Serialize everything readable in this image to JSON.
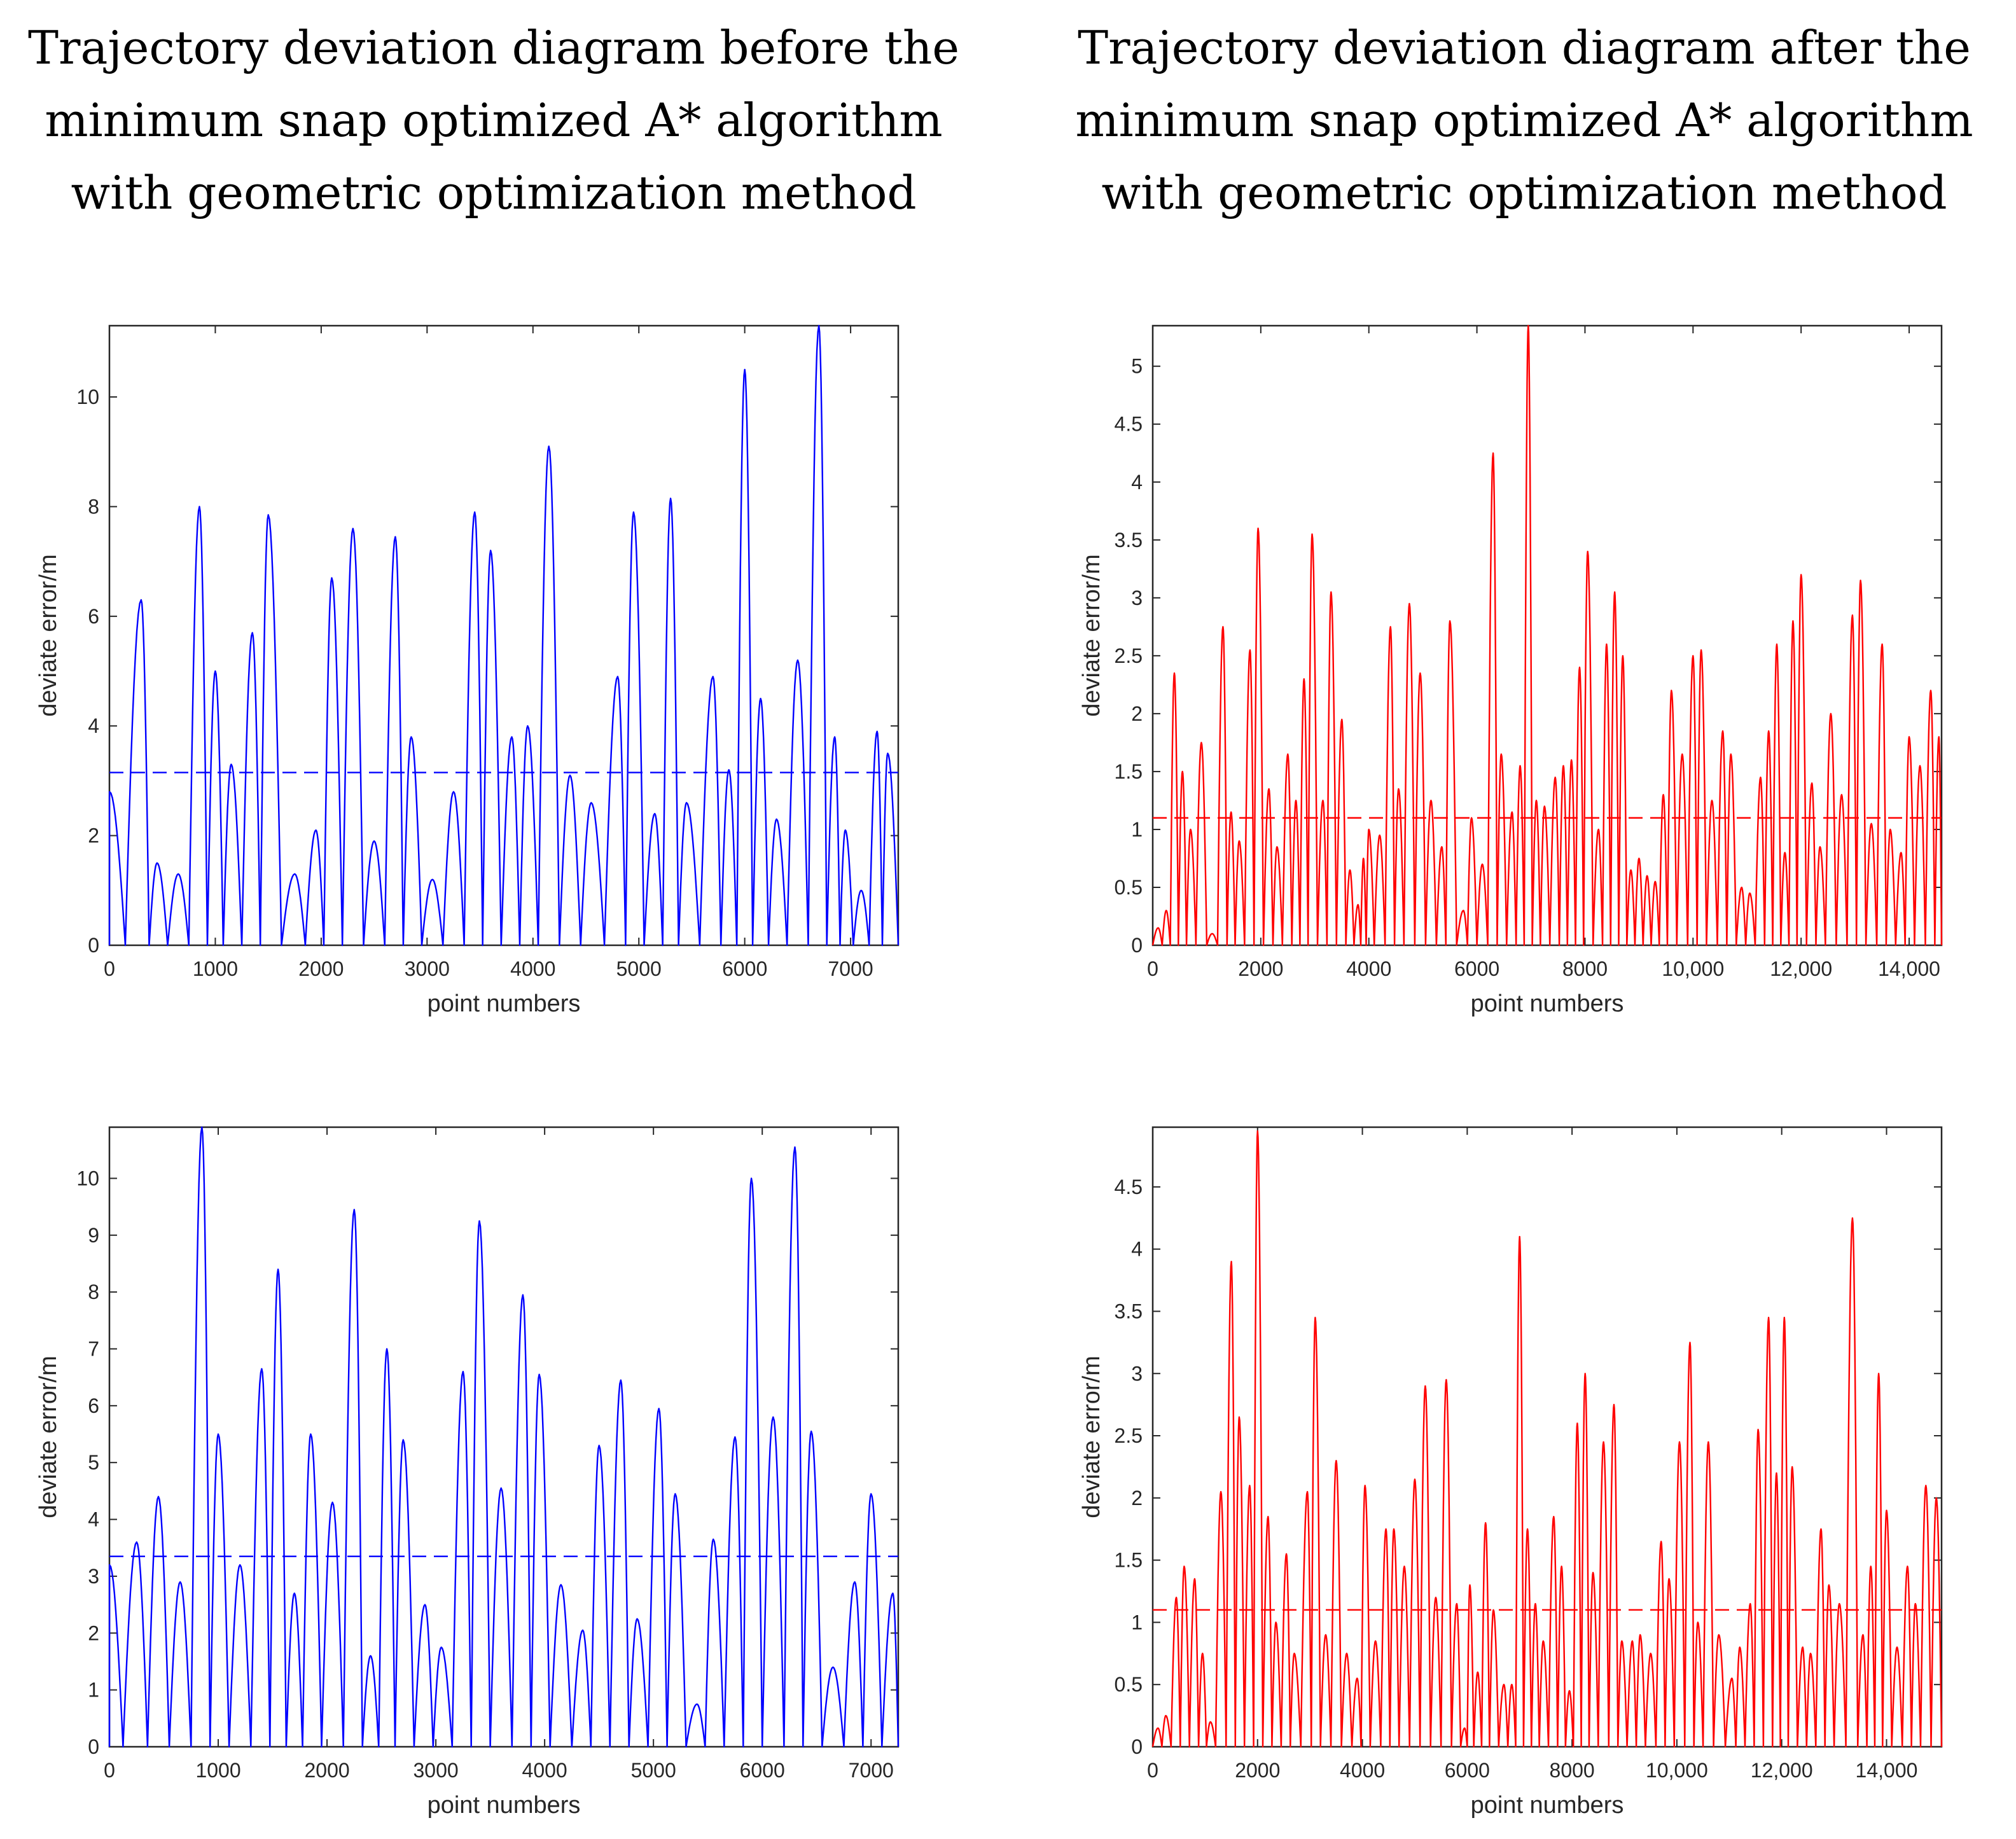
{
  "titles": {
    "left": "Trajectory deviation diagram before the\nminimum snap optimized A* algorithm\nwith geometric optimization method",
    "right": "Trajectory deviation diagram after the\nminimum snap optimized A* algorithm\nwith geometric optimization method"
  },
  "colors": {
    "before": "#0000ff",
    "after": "#ff0000",
    "axis": "#262626"
  },
  "chart_data": [
    {
      "id": "top-left",
      "type": "line",
      "color_key": "before",
      "xlabel": "point numbers",
      "ylabel": "deviate error/m",
      "xlim": [
        0,
        7450
      ],
      "ylim": [
        0,
        11.3
      ],
      "xticks": [
        0,
        1000,
        2000,
        3000,
        4000,
        5000,
        6000,
        7000
      ],
      "xtick_labels": [
        "0",
        "1000",
        "2000",
        "3000",
        "4000",
        "5000",
        "6000",
        "7000"
      ],
      "yticks": [
        0,
        2,
        4,
        6,
        8,
        10
      ],
      "ytick_labels": [
        "0",
        "2",
        "4",
        "6",
        "8",
        "10"
      ],
      "mean": 3.15,
      "peak_halfwidth": 50,
      "peaks": [
        [
          0,
          2.8
        ],
        [
          300,
          6.3
        ],
        [
          450,
          1.5
        ],
        [
          650,
          1.3
        ],
        [
          850,
          8.0
        ],
        [
          1000,
          5.0
        ],
        [
          1150,
          3.3
        ],
        [
          1350,
          5.7
        ],
        [
          1500,
          7.85
        ],
        [
          1750,
          1.3
        ],
        [
          1950,
          2.1
        ],
        [
          2100,
          6.7
        ],
        [
          2300,
          7.6
        ],
        [
          2500,
          1.9
        ],
        [
          2700,
          7.45
        ],
        [
          2850,
          3.8
        ],
        [
          3050,
          1.2
        ],
        [
          3250,
          2.8
        ],
        [
          3450,
          7.9
        ],
        [
          3600,
          7.2
        ],
        [
          3800,
          3.8
        ],
        [
          3950,
          4.0
        ],
        [
          4150,
          9.1
        ],
        [
          4350,
          3.1
        ],
        [
          4550,
          2.6
        ],
        [
          4800,
          4.9
        ],
        [
          4950,
          7.9
        ],
        [
          5150,
          2.4
        ],
        [
          5300,
          8.15
        ],
        [
          5450,
          2.6
        ],
        [
          5700,
          4.9
        ],
        [
          5850,
          3.2
        ],
        [
          6000,
          10.5
        ],
        [
          6150,
          4.5
        ],
        [
          6300,
          2.3
        ],
        [
          6500,
          5.2
        ],
        [
          6700,
          11.3
        ],
        [
          6850,
          3.8
        ],
        [
          6950,
          2.1
        ],
        [
          7100,
          1.0
        ],
        [
          7250,
          3.9
        ],
        [
          7350,
          3.5
        ]
      ]
    },
    {
      "id": "top-right",
      "type": "line",
      "color_key": "after",
      "xlabel": "point numbers",
      "ylabel": "deviate error/m",
      "xlim": [
        0,
        14600
      ],
      "ylim": [
        0,
        5.35
      ],
      "xticks": [
        0,
        2000,
        4000,
        6000,
        8000,
        10000,
        12000,
        14000
      ],
      "xtick_labels": [
        "0",
        "2000",
        "4000",
        "6000",
        "8000",
        "10,000",
        "12,000",
        "14,000"
      ],
      "yticks": [
        0,
        0.5,
        1,
        1.5,
        2,
        2.5,
        3,
        3.5,
        4,
        4.5,
        5
      ],
      "ytick_labels": [
        "0",
        "0.5",
        "1",
        "1.5",
        "2",
        "2.5",
        "3",
        "3.5",
        "4",
        "4.5",
        "5"
      ],
      "mean": 1.1,
      "peak_halfwidth": 45,
      "peaks": [
        [
          100,
          0.15
        ],
        [
          250,
          0.3
        ],
        [
          400,
          2.35
        ],
        [
          550,
          1.5
        ],
        [
          700,
          1.0
        ],
        [
          900,
          1.75
        ],
        [
          1100,
          0.1
        ],
        [
          1300,
          2.75
        ],
        [
          1450,
          1.15
        ],
        [
          1600,
          0.9
        ],
        [
          1800,
          2.55
        ],
        [
          1950,
          3.6
        ],
        [
          2150,
          1.35
        ],
        [
          2300,
          0.85
        ],
        [
          2500,
          1.65
        ],
        [
          2650,
          1.25
        ],
        [
          2800,
          2.3
        ],
        [
          2950,
          3.55
        ],
        [
          3150,
          1.25
        ],
        [
          3300,
          3.05
        ],
        [
          3500,
          1.95
        ],
        [
          3650,
          0.65
        ],
        [
          3800,
          0.35
        ],
        [
          3900,
          0.75
        ],
        [
          4000,
          1.0
        ],
        [
          4200,
          0.95
        ],
        [
          4400,
          2.75
        ],
        [
          4550,
          1.35
        ],
        [
          4750,
          2.95
        ],
        [
          4950,
          2.35
        ],
        [
          5150,
          1.25
        ],
        [
          5350,
          0.85
        ],
        [
          5500,
          2.8
        ],
        [
          5750,
          0.3
        ],
        [
          5900,
          1.1
        ],
        [
          6100,
          0.7
        ],
        [
          6300,
          4.25
        ],
        [
          6450,
          1.65
        ],
        [
          6650,
          1.15
        ],
        [
          6800,
          1.55
        ],
        [
          6950,
          5.35
        ],
        [
          7100,
          1.25
        ],
        [
          7250,
          1.2
        ],
        [
          7450,
          1.45
        ],
        [
          7600,
          1.55
        ],
        [
          7750,
          1.6
        ],
        [
          7900,
          2.4
        ],
        [
          8050,
          3.4
        ],
        [
          8250,
          1.0
        ],
        [
          8400,
          2.6
        ],
        [
          8550,
          3.05
        ],
        [
          8700,
          2.5
        ],
        [
          8850,
          0.65
        ],
        [
          9000,
          0.75
        ],
        [
          9150,
          0.6
        ],
        [
          9300,
          0.55
        ],
        [
          9450,
          1.3
        ],
        [
          9600,
          2.2
        ],
        [
          9800,
          1.65
        ],
        [
          10000,
          2.5
        ],
        [
          10150,
          2.55
        ],
        [
          10350,
          1.25
        ],
        [
          10550,
          1.85
        ],
        [
          10700,
          1.65
        ],
        [
          10900,
          0.5
        ],
        [
          11050,
          0.45
        ],
        [
          11250,
          1.45
        ],
        [
          11400,
          1.85
        ],
        [
          11550,
          2.6
        ],
        [
          11700,
          0.8
        ],
        [
          11850,
          2.8
        ],
        [
          12000,
          3.2
        ],
        [
          12200,
          1.4
        ],
        [
          12350,
          0.85
        ],
        [
          12550,
          2.0
        ],
        [
          12750,
          1.3
        ],
        [
          12950,
          2.85
        ],
        [
          13100,
          3.15
        ],
        [
          13300,
          1.05
        ],
        [
          13500,
          2.6
        ],
        [
          13650,
          1.0
        ],
        [
          13850,
          0.8
        ],
        [
          14000,
          1.8
        ],
        [
          14200,
          1.55
        ],
        [
          14400,
          2.2
        ],
        [
          14550,
          1.8
        ]
      ]
    },
    {
      "id": "bottom-left",
      "type": "line",
      "color_key": "before",
      "xlabel": "point numbers",
      "ylabel": "deviate error/m",
      "xlim": [
        0,
        7250
      ],
      "ylim": [
        0,
        10.9
      ],
      "xticks": [
        0,
        1000,
        2000,
        3000,
        4000,
        5000,
        6000,
        7000
      ],
      "xtick_labels": [
        "0",
        "1000",
        "2000",
        "3000",
        "4000",
        "5000",
        "6000",
        "7000"
      ],
      "yticks": [
        0,
        1,
        2,
        3,
        4,
        5,
        6,
        7,
        8,
        9,
        10
      ],
      "ytick_labels": [
        "0",
        "1",
        "2",
        "3",
        "4",
        "5",
        "6",
        "7",
        "8",
        "9",
        "10"
      ],
      "mean": 3.35,
      "peak_halfwidth": 50,
      "peaks": [
        [
          0,
          3.2
        ],
        [
          250,
          3.6
        ],
        [
          450,
          4.4
        ],
        [
          650,
          2.9
        ],
        [
          850,
          10.9
        ],
        [
          1000,
          5.5
        ],
        [
          1200,
          3.2
        ],
        [
          1400,
          6.65
        ],
        [
          1550,
          8.4
        ],
        [
          1700,
          2.7
        ],
        [
          1850,
          5.5
        ],
        [
          2050,
          4.3
        ],
        [
          2250,
          9.45
        ],
        [
          2400,
          1.6
        ],
        [
          2550,
          7.0
        ],
        [
          2700,
          5.4
        ],
        [
          2900,
          2.5
        ],
        [
          3050,
          1.75
        ],
        [
          3250,
          6.6
        ],
        [
          3400,
          9.25
        ],
        [
          3600,
          4.55
        ],
        [
          3800,
          7.95
        ],
        [
          3950,
          6.55
        ],
        [
          4150,
          2.85
        ],
        [
          4350,
          2.05
        ],
        [
          4500,
          5.3
        ],
        [
          4700,
          6.45
        ],
        [
          4850,
          2.25
        ],
        [
          5050,
          5.95
        ],
        [
          5200,
          4.45
        ],
        [
          5400,
          0.75
        ],
        [
          5550,
          3.65
        ],
        [
          5750,
          5.45
        ],
        [
          5900,
          10.0
        ],
        [
          6100,
          5.8
        ],
        [
          6300,
          10.55
        ],
        [
          6450,
          5.55
        ],
        [
          6650,
          1.4
        ],
        [
          6850,
          2.9
        ],
        [
          7000,
          4.45
        ],
        [
          7200,
          2.7
        ]
      ]
    },
    {
      "id": "bottom-right",
      "type": "line",
      "color_key": "after",
      "xlabel": "point numbers",
      "ylabel": "deviate error/m",
      "xlim": [
        0,
        15050
      ],
      "ylim": [
        0,
        4.98
      ],
      "xticks": [
        0,
        2000,
        4000,
        6000,
        8000,
        10000,
        12000,
        14000
      ],
      "xtick_labels": [
        "0",
        "2000",
        "4000",
        "6000",
        "8000",
        "10,000",
        "12,000",
        "14,000"
      ],
      "yticks": [
        0,
        0.5,
        1,
        1.5,
        2,
        2.5,
        3,
        3.5,
        4,
        4.5
      ],
      "ytick_labels": [
        "0",
        "0.5",
        "1",
        "1.5",
        "2",
        "2.5",
        "3",
        "3.5",
        "4",
        "4.5"
      ],
      "mean": 1.1,
      "peak_halfwidth": 45,
      "peaks": [
        [
          100,
          0.15
        ],
        [
          250,
          0.25
        ],
        [
          450,
          1.2
        ],
        [
          600,
          1.45
        ],
        [
          800,
          1.35
        ],
        [
          950,
          0.75
        ],
        [
          1100,
          0.2
        ],
        [
          1300,
          2.05
        ],
        [
          1500,
          3.9
        ],
        [
          1650,
          2.65
        ],
        [
          1850,
          2.1
        ],
        [
          2000,
          4.95
        ],
        [
          2200,
          1.85
        ],
        [
          2350,
          1.0
        ],
        [
          2550,
          1.55
        ],
        [
          2700,
          0.75
        ],
        [
          2950,
          2.05
        ],
        [
          3100,
          3.45
        ],
        [
          3300,
          0.9
        ],
        [
          3500,
          2.3
        ],
        [
          3700,
          0.75
        ],
        [
          3900,
          0.55
        ],
        [
          4050,
          2.1
        ],
        [
          4250,
          0.85
        ],
        [
          4450,
          1.75
        ],
        [
          4600,
          1.75
        ],
        [
          4800,
          1.45
        ],
        [
          5000,
          2.15
        ],
        [
          5200,
          2.9
        ],
        [
          5400,
          1.2
        ],
        [
          5600,
          2.95
        ],
        [
          5800,
          1.15
        ],
        [
          5950,
          0.15
        ],
        [
          6050,
          1.3
        ],
        [
          6200,
          0.6
        ],
        [
          6350,
          1.8
        ],
        [
          6500,
          1.1
        ],
        [
          6700,
          0.5
        ],
        [
          6850,
          0.5
        ],
        [
          7000,
          4.1
        ],
        [
          7150,
          1.75
        ],
        [
          7300,
          1.15
        ],
        [
          7450,
          0.85
        ],
        [
          7650,
          1.85
        ],
        [
          7800,
          1.45
        ],
        [
          7950,
          0.45
        ],
        [
          8100,
          2.6
        ],
        [
          8250,
          3.0
        ],
        [
          8400,
          1.4
        ],
        [
          8600,
          2.45
        ],
        [
          8800,
          2.75
        ],
        [
          8950,
          0.85
        ],
        [
          9150,
          0.85
        ],
        [
          9300,
          0.9
        ],
        [
          9500,
          0.75
        ],
        [
          9700,
          1.65
        ],
        [
          9850,
          1.35
        ],
        [
          10050,
          2.45
        ],
        [
          10250,
          3.25
        ],
        [
          10400,
          1.0
        ],
        [
          10600,
          2.45
        ],
        [
          10800,
          0.9
        ],
        [
          11050,
          0.55
        ],
        [
          11200,
          0.8
        ],
        [
          11400,
          1.15
        ],
        [
          11550,
          2.55
        ],
        [
          11750,
          3.45
        ],
        [
          11900,
          2.2
        ],
        [
          12050,
          3.45
        ],
        [
          12200,
          2.25
        ],
        [
          12400,
          0.8
        ],
        [
          12550,
          0.75
        ],
        [
          12750,
          1.75
        ],
        [
          12900,
          1.3
        ],
        [
          13100,
          1.15
        ],
        [
          13350,
          4.25
        ],
        [
          13550,
          0.9
        ],
        [
          13700,
          1.45
        ],
        [
          13850,
          3.0
        ],
        [
          14000,
          1.9
        ],
        [
          14200,
          0.8
        ],
        [
          14400,
          1.45
        ],
        [
          14550,
          1.15
        ],
        [
          14750,
          2.1
        ],
        [
          14950,
          2.0
        ]
      ]
    }
  ]
}
